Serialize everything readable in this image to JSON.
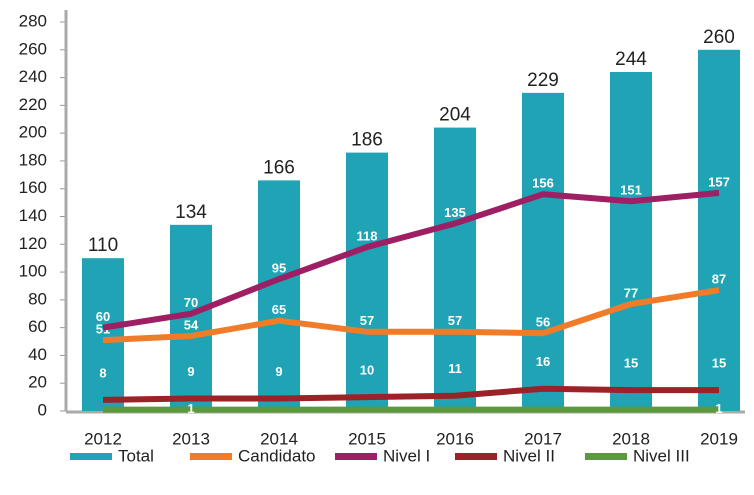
{
  "chart_data": {
    "type": "bar-line",
    "categories": [
      "2012",
      "2013",
      "2014",
      "2015",
      "2016",
      "2017",
      "2018",
      "2019"
    ],
    "ylim": [
      0,
      280
    ],
    "yticks": [
      0,
      20,
      40,
      60,
      80,
      100,
      120,
      140,
      160,
      180,
      200,
      220,
      240,
      260,
      280
    ],
    "series": [
      {
        "name": "Total",
        "type": "bar",
        "color": "#1fa3b5",
        "values": [
          110,
          134,
          166,
          186,
          204,
          229,
          244,
          260
        ]
      },
      {
        "name": "Candidato",
        "type": "line",
        "color": "#f07c2a",
        "values": [
          51,
          54,
          65,
          57,
          57,
          56,
          77,
          87
        ]
      },
      {
        "name": "Nivel I",
        "type": "line",
        "color": "#9e1f63",
        "values": [
          60,
          70,
          95,
          118,
          135,
          156,
          151,
          157
        ]
      },
      {
        "name": "Nivel II",
        "type": "line",
        "color": "#9b2226",
        "values": [
          8,
          9,
          9,
          10,
          11,
          16,
          15,
          15
        ]
      },
      {
        "name": "Nivel III",
        "type": "line",
        "color": "#5a9a3c",
        "values": [
          1,
          1,
          1,
          1,
          1,
          1,
          1,
          1
        ],
        "value_labels": [
          null,
          "1",
          null,
          null,
          null,
          null,
          null,
          "1"
        ]
      }
    ],
    "legend": "bottom"
  }
}
